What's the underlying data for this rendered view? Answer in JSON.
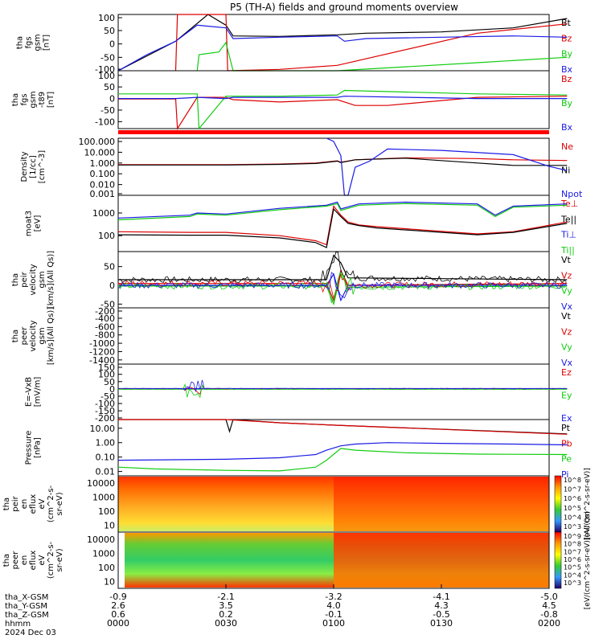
{
  "title": "P5 (TH-A) fields and ground moments overview",
  "colors": {
    "black": "#000000",
    "red": "#dd0000",
    "green": "#11cc11",
    "blue": "#1a1ae6",
    "bar_red": "#ff0000"
  },
  "chart_data": [
    {
      "type": "line",
      "id": "p1",
      "ylabel": [
        "tha",
        "fgs",
        "gsm",
        "[nT]"
      ],
      "yticks": [
        "100",
        "50",
        "0",
        "-50",
        "-100"
      ],
      "ylim": [
        -100,
        110
      ],
      "series": [
        {
          "name": "Bt",
          "color": "black",
          "x": [
            0,
            16,
            25,
            30,
            32,
            45,
            61,
            69,
            90,
            110,
            125
          ],
          "y": [
            -110,
            10,
            110,
            70,
            30,
            28,
            34,
            40,
            45,
            60,
            95
          ]
        },
        {
          "name": "Bz",
          "color": "red",
          "x": [
            16,
            16.5,
            30,
            30.5,
            45,
            61,
            100,
            125
          ],
          "y": [
            -120,
            110,
            110,
            -100,
            -95,
            -80,
            40,
            75
          ]
        },
        {
          "name": "By",
          "color": "green",
          "x": [
            22,
            22.5,
            28,
            30,
            32,
            45,
            61,
            100,
            125
          ],
          "y": [
            -120,
            -40,
            -30,
            5,
            -110,
            -120,
            -110,
            -70,
            -50
          ]
        },
        {
          "name": "Bx",
          "color": "blue",
          "x": [
            0,
            8,
            16,
            22,
            30,
            32,
            45,
            61,
            63,
            69,
            90,
            110,
            125
          ],
          "y": [
            -100,
            -40,
            10,
            70,
            60,
            20,
            25,
            30,
            10,
            20,
            25,
            30,
            25
          ]
        }
      ]
    },
    {
      "type": "line",
      "id": "p2",
      "ylabel": [
        "tha",
        "fgs",
        "gsm",
        "-t89",
        "[nT]"
      ],
      "yticks": [
        "100",
        "50",
        "0",
        "-50",
        "-100"
      ],
      "ylim": [
        -130,
        120
      ],
      "series": [
        {
          "name": "Bz",
          "color": "red",
          "x": [
            0,
            16,
            16.5,
            22,
            30,
            32,
            45,
            61,
            66,
            75,
            100,
            125
          ],
          "y": [
            -2,
            -2,
            -140,
            5,
            5,
            -5,
            -15,
            -5,
            -30,
            -30,
            5,
            10
          ]
        },
        {
          "name": "By",
          "color": "green",
          "x": [
            0,
            16,
            22,
            22.5,
            30,
            32,
            45,
            61,
            63,
            100,
            125
          ],
          "y": [
            20,
            20,
            20,
            -140,
            10,
            10,
            10,
            15,
            35,
            20,
            15
          ]
        },
        {
          "name": "Bx",
          "color": "blue",
          "x": [
            0,
            16,
            22,
            30,
            32,
            45,
            61,
            63,
            100,
            125
          ],
          "y": [
            0,
            0,
            5,
            0,
            5,
            5,
            5,
            10,
            0,
            0
          ]
        }
      ]
    },
    {
      "type": "line",
      "id": "p3",
      "ylog": true,
      "ylabel": [
        "Density",
        "[1/cc]",
        "[cm^-3]"
      ],
      "yticks": [
        "100.000",
        "10.000",
        "1.000",
        "0.100",
        "0.010",
        "0.001"
      ],
      "ylim": [
        0.001,
        200
      ],
      "series": [
        {
          "name": "Ne",
          "color": "red",
          "x": [
            0,
            30,
            45,
            55,
            61,
            62,
            66,
            80,
            100,
            110,
            125
          ],
          "y": [
            0.7,
            0.7,
            0.8,
            1.0,
            1.6,
            1.2,
            2.0,
            3.0,
            2.6,
            2.0,
            1.7
          ]
        },
        {
          "name": "Ni",
          "color": "black",
          "x": [
            0,
            30,
            45,
            55,
            61,
            62,
            66,
            80,
            100,
            110,
            125
          ],
          "y": [
            0.65,
            0.65,
            0.75,
            0.9,
            1.5,
            1.1,
            2.0,
            2.8,
            1.0,
            0.6,
            0.6
          ]
        },
        {
          "name": "Npot",
          "color": "blue",
          "x": [
            58,
            60,
            62,
            63,
            64,
            66,
            70,
            75,
            90,
            110,
            120,
            125
          ],
          "y": [
            200,
            100,
            5,
            0.001,
            0.001,
            0.4,
            1.5,
            20,
            15,
            6,
            0.5,
            0.2
          ]
        }
      ]
    },
    {
      "type": "line",
      "id": "p4",
      "ylog": true,
      "ylabel": [
        "moat3",
        "[eV]"
      ],
      "yticks": [
        "1000",
        "100"
      ],
      "ylim": [
        20,
        6000
      ],
      "series": [
        {
          "name": "Te⊥",
          "color": "red",
          "x": [
            0,
            20,
            30,
            45,
            55,
            58,
            60,
            62,
            64,
            67,
            72,
            100,
            110,
            125
          ],
          "y": [
            150,
            140,
            140,
            100,
            60,
            40,
            2000,
            800,
            400,
            300,
            250,
            120,
            150,
            400
          ]
        },
        {
          "name": "Te||",
          "color": "black",
          "x": [
            0,
            20,
            30,
            45,
            55,
            58,
            60,
            62,
            64,
            67,
            72,
            100,
            110,
            125
          ],
          "y": [
            110,
            105,
            105,
            80,
            50,
            30,
            1500,
            700,
            350,
            280,
            220,
            110,
            140,
            350
          ]
        },
        {
          "name": "Ti⊥",
          "color": "blue",
          "x": [
            0,
            20,
            22,
            30,
            45,
            58,
            61,
            62,
            67,
            80,
            100,
            105,
            110,
            125
          ],
          "y": [
            600,
            800,
            1000,
            900,
            1600,
            2200,
            3000,
            1500,
            2500,
            3000,
            2500,
            800,
            2000,
            2500
          ]
        },
        {
          "name": "Ti||",
          "color": "green",
          "x": [
            0,
            20,
            22,
            30,
            45,
            58,
            61,
            62,
            67,
            80,
            100,
            105,
            110,
            125
          ],
          "y": [
            500,
            700,
            900,
            800,
            1400,
            2000,
            2600,
            1300,
            2200,
            2600,
            2200,
            700,
            1800,
            2200
          ]
        }
      ]
    },
    {
      "type": "line",
      "id": "p5",
      "ylabel": [
        "tha",
        "peir",
        "velocity",
        "gsm",
        "[km/s](All Qs)]"
      ],
      "yticks": [
        "50",
        "0",
        "-50"
      ],
      "ylim": [
        -60,
        90
      ],
      "series": [
        {
          "name": "Vt",
          "color": "black",
          "x": [
            0,
            58,
            60,
            62,
            64,
            125
          ],
          "y": [
            15,
            15,
            80,
            60,
            20,
            15
          ]
        },
        {
          "name": "Vz",
          "color": "red",
          "x": [
            0,
            58,
            60,
            62,
            64,
            125
          ],
          "y": [
            5,
            5,
            -40,
            40,
            0,
            5
          ]
        },
        {
          "name": "Vy",
          "color": "green",
          "x": [
            0,
            58,
            60,
            62,
            64,
            125
          ],
          "y": [
            -2,
            -2,
            -50,
            30,
            -5,
            -2
          ]
        },
        {
          "name": "Vx",
          "color": "blue",
          "x": [
            0,
            58,
            60,
            62,
            64,
            125
          ],
          "y": [
            0,
            0,
            30,
            -40,
            0,
            0
          ]
        }
      ]
    },
    {
      "type": "line",
      "id": "p6",
      "ylabel": [
        "tha",
        "peer",
        "velocity",
        "gsm",
        "[km/s](All Qs)]"
      ],
      "yticks": [
        "-200",
        "-400",
        "-600",
        "-800",
        "-1000",
        "-1200",
        "-1400"
      ],
      "ylim": [
        -1500,
        -150
      ],
      "series": [
        {
          "name": "Vt",
          "color": "black",
          "x": [],
          "y": []
        },
        {
          "name": "Vz",
          "color": "red",
          "x": [],
          "y": []
        },
        {
          "name": "Vy",
          "color": "green",
          "x": [],
          "y": []
        },
        {
          "name": "Vx",
          "color": "blue",
          "x": [],
          "y": []
        }
      ]
    },
    {
      "type": "line",
      "id": "p7",
      "ylabel": [
        "E=-VxB",
        "[mV/m]"
      ],
      "yticks": [
        "150",
        "100",
        "50",
        "0",
        "-50",
        "-100",
        "-150",
        "-200"
      ],
      "ylim": [
        -210,
        170
      ],
      "series": [
        {
          "name": "Ez",
          "color": "red",
          "x": [
            0,
            125
          ],
          "y": [
            0,
            0
          ]
        },
        {
          "name": "Ey",
          "color": "green",
          "x": [
            0,
            125
          ],
          "y": [
            -2,
            -2
          ]
        },
        {
          "name": "Ex",
          "color": "blue",
          "x": [
            0,
            125
          ],
          "y": [
            2,
            2
          ]
        }
      ]
    },
    {
      "type": "line",
      "id": "p8",
      "ylog": true,
      "ylabel": [
        "Pressure",
        "[nPa]"
      ],
      "yticks": [
        "10.00",
        "1.00",
        "0.10",
        "0.01"
      ],
      "ylim": [
        0.005,
        40
      ],
      "series": [
        {
          "name": "Pt",
          "color": "black",
          "x": [
            0,
            30,
            31,
            32,
            45,
            61,
            125
          ],
          "y": [
            40,
            40,
            6,
            40,
            24,
            16,
            4
          ]
        },
        {
          "name": "Pb",
          "color": "red",
          "x": [
            0,
            30,
            45,
            61,
            125
          ],
          "y": [
            40,
            40,
            24,
            16,
            3.8
          ]
        },
        {
          "name": "Pe",
          "color": "green",
          "x": [
            0,
            10,
            30,
            45,
            55,
            58,
            62,
            66,
            80,
            100,
            125
          ],
          "y": [
            0.02,
            0.015,
            0.012,
            0.011,
            0.02,
            0.06,
            0.4,
            0.3,
            0.2,
            0.16,
            0.15
          ]
        },
        {
          "name": "Pi",
          "color": "blue",
          "x": [
            0,
            30,
            45,
            55,
            58,
            62,
            66,
            75,
            90,
            110,
            125
          ],
          "y": [
            0.06,
            0.07,
            0.09,
            0.15,
            0.3,
            0.6,
            0.8,
            1.0,
            0.9,
            0.8,
            0.7
          ]
        }
      ]
    },
    {
      "type": "heatmap",
      "id": "p9",
      "ylabel": [
        "tha",
        "peir",
        "en",
        "eflux",
        "eV",
        "(cm^2-s-",
        "sr-eV)"
      ],
      "yticks": [
        "10000",
        "1000",
        "100",
        "10"
      ],
      "colorbar_label": "[eV/(cm^2-s-sr-eV)]",
      "colorbar_ticks": [
        "10^8",
        "10^7",
        "10^6",
        "10^5",
        "10^4",
        "10^3"
      ]
    },
    {
      "type": "heatmap",
      "id": "p10",
      "ylabel": [
        "tha",
        "peer",
        "en",
        "eflux",
        "eV",
        "(cm^2-s-",
        "sr-eV)"
      ],
      "yticks": [
        "10000",
        "1000",
        "100",
        "10"
      ],
      "colorbar_label": "[eV/(cm^2-s-sr-eV)](All Qs)",
      "colorbar_ticks": [
        "10^9",
        "10^8",
        "10^7",
        "10^6",
        "10^5",
        "10^4",
        "10^3"
      ]
    }
  ],
  "xaxis": {
    "row_labels": [
      "tha_X-GSM",
      "tha_Y-GSM",
      "tha_Z-GSM",
      "hhmm",
      "2024 Dec 03"
    ],
    "ticks": [
      {
        "x": 0,
        "vals": [
          "-0.9",
          "2.6",
          "0.6",
          "0000"
        ]
      },
      {
        "x": 30,
        "vals": [
          "-2.1",
          "3.5",
          "0.2",
          "0030"
        ]
      },
      {
        "x": 60,
        "vals": [
          "-3.2",
          "4.0",
          "-0.1",
          "0100"
        ]
      },
      {
        "x": 90,
        "vals": [
          "-4.1",
          "4.3",
          "-0.5",
          "0130"
        ]
      },
      {
        "x": 120,
        "vals": [
          "-5.0",
          "4.5",
          "-0.8",
          "0200"
        ]
      }
    ],
    "xlim": [
      0,
      120
    ]
  }
}
